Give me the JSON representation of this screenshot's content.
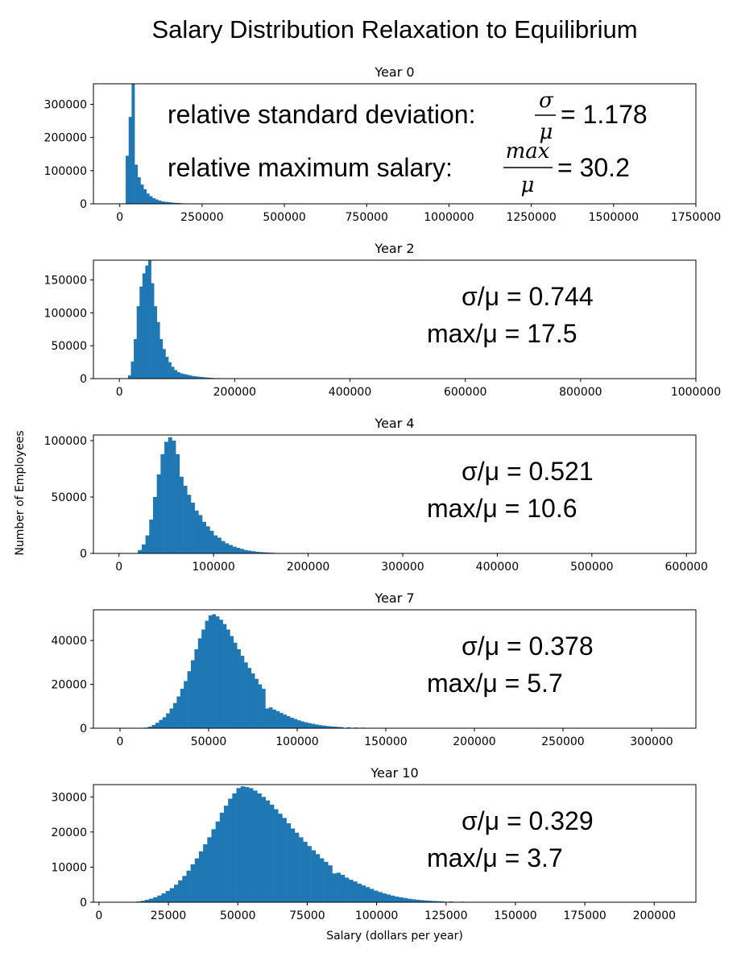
{
  "chart_data": {
    "title": "Salary Distribution Relaxation to Equilibrium",
    "ylabel": "Number of Employees",
    "xlabel": "Salary (dollars per year)",
    "colors": {
      "bars": "#1f77b4"
    },
    "panels": [
      {
        "type": "bar",
        "title": "Year 0",
        "xlim": [
          -80000,
          1750000
        ],
        "ylim": [
          0,
          362000
        ],
        "xticks": [
          0,
          250000,
          500000,
          750000,
          1000000,
          1250000,
          1500000,
          1750000
        ],
        "yticks": [
          0,
          100000,
          200000,
          300000
        ],
        "bin_width": 9000,
        "bins": [
          [
            18000,
            145000
          ],
          [
            27000,
            262000
          ],
          [
            36000,
            362000
          ],
          [
            45000,
            118000
          ],
          [
            54000,
            80000
          ],
          [
            63000,
            58000
          ],
          [
            72000,
            44000
          ],
          [
            81000,
            31000
          ],
          [
            90000,
            23000
          ],
          [
            99000,
            17000
          ],
          [
            108000,
            13000
          ],
          [
            117000,
            10000
          ],
          [
            126000,
            7000
          ],
          [
            135000,
            6000
          ],
          [
            144000,
            5000
          ],
          [
            153000,
            4000
          ],
          [
            162000,
            3000
          ],
          [
            171000,
            2500
          ],
          [
            180000,
            2000
          ],
          [
            189000,
            1500
          ],
          [
            198000,
            1200
          ],
          [
            207000,
            1000
          ],
          [
            216000,
            800
          ],
          [
            225000,
            600
          ],
          [
            234000,
            500
          ],
          [
            243000,
            400
          ]
        ],
        "annotations": {
          "sd_text": "relative standard deviation:",
          "sd_numerator": "σ",
          "sd_denominator": "μ",
          "sd_value": "= 1.178",
          "max_text": "relative maximum salary:",
          "max_numerator": "max",
          "max_denominator": "μ",
          "max_value": "= 30.2"
        }
      },
      {
        "type": "bar",
        "title": "Year 2",
        "xlim": [
          -45000,
          1000000
        ],
        "ylim": [
          0,
          180000
        ],
        "xticks": [
          0,
          200000,
          400000,
          600000,
          800000,
          1000000
        ],
        "yticks": [
          0,
          50000,
          100000,
          150000
        ],
        "bin_width": 5000,
        "bins": [
          [
            15000,
            5000
          ],
          [
            20000,
            26000
          ],
          [
            25000,
            60000
          ],
          [
            30000,
            110000
          ],
          [
            35000,
            140000
          ],
          [
            40000,
            160000
          ],
          [
            45000,
            172000
          ],
          [
            50000,
            181000
          ],
          [
            55000,
            145000
          ],
          [
            60000,
            110000
          ],
          [
            65000,
            86000
          ],
          [
            70000,
            60000
          ],
          [
            75000,
            45000
          ],
          [
            80000,
            33000
          ],
          [
            85000,
            25000
          ],
          [
            90000,
            18000
          ],
          [
            95000,
            13000
          ],
          [
            100000,
            10000
          ],
          [
            105000,
            8000
          ],
          [
            110000,
            7000
          ],
          [
            115000,
            6000
          ],
          [
            120000,
            5000
          ],
          [
            125000,
            4000
          ],
          [
            130000,
            3500
          ],
          [
            135000,
            3000
          ],
          [
            140000,
            2500
          ],
          [
            145000,
            2000
          ],
          [
            150000,
            1600
          ],
          [
            155000,
            1200
          ],
          [
            160000,
            1000
          ],
          [
            170000,
            800
          ],
          [
            180000,
            700
          ],
          [
            190000,
            600
          ],
          [
            200000,
            500
          ],
          [
            220000,
            400
          ],
          [
            240000,
            300
          ],
          [
            260000,
            250
          ],
          [
            280000,
            200
          ],
          [
            295000,
            150
          ]
        ],
        "annotations": {
          "sd_line": "σ/μ = 0.744",
          "max_line": "max/μ = 17.5"
        }
      },
      {
        "type": "bar",
        "title": "Year 4",
        "xlim": [
          -27000,
          610000
        ],
        "ylim": [
          0,
          105000
        ],
        "xticks": [
          0,
          100000,
          200000,
          300000,
          400000,
          500000,
          600000
        ],
        "yticks": [
          0,
          50000,
          100000
        ],
        "bin_width": 4000,
        "bins": [
          [
            20000,
            3000
          ],
          [
            24000,
            8000
          ],
          [
            28000,
            16000
          ],
          [
            32000,
            30000
          ],
          [
            36000,
            50000
          ],
          [
            40000,
            70000
          ],
          [
            44000,
            88000
          ],
          [
            48000,
            99000
          ],
          [
            52000,
            103000
          ],
          [
            56000,
            100000
          ],
          [
            60000,
            88000
          ],
          [
            64000,
            68000
          ],
          [
            68000,
            60000
          ],
          [
            72000,
            52000
          ],
          [
            76000,
            45000
          ],
          [
            80000,
            38000
          ],
          [
            84000,
            34000
          ],
          [
            88000,
            28000
          ],
          [
            92000,
            24000
          ],
          [
            96000,
            20000
          ],
          [
            100000,
            16000
          ],
          [
            104000,
            14000
          ],
          [
            108000,
            11000
          ],
          [
            112000,
            9000
          ],
          [
            116000,
            7500
          ],
          [
            120000,
            6000
          ],
          [
            124000,
            5000
          ],
          [
            128000,
            4000
          ],
          [
            132000,
            3000
          ],
          [
            136000,
            2500
          ],
          [
            140000,
            2000
          ],
          [
            144000,
            1500
          ],
          [
            148000,
            1200
          ],
          [
            152000,
            1000
          ],
          [
            156000,
            800
          ],
          [
            160000,
            600
          ],
          [
            164000,
            400
          ]
        ],
        "annotations": {
          "sd_line": "σ/μ = 0.521",
          "max_line": "max/μ = 10.6"
        }
      },
      {
        "type": "bar",
        "title": "Year 7",
        "xlim": [
          -15000,
          325000
        ],
        "ylim": [
          0,
          54000
        ],
        "xticks": [
          0,
          50000,
          100000,
          150000,
          200000,
          250000,
          300000
        ],
        "yticks": [
          0,
          20000,
          40000
        ],
        "bin_width": 2000,
        "bins": [
          [
            14000,
            300
          ],
          [
            16000,
            700
          ],
          [
            18000,
            1500
          ],
          [
            20000,
            2500
          ],
          [
            22000,
            3800
          ],
          [
            24000,
            5000
          ],
          [
            26000,
            6800
          ],
          [
            28000,
            9000
          ],
          [
            30000,
            11500
          ],
          [
            32000,
            14500
          ],
          [
            34000,
            18000
          ],
          [
            36000,
            21500
          ],
          [
            38000,
            26000
          ],
          [
            40000,
            31000
          ],
          [
            42000,
            36000
          ],
          [
            44000,
            41000
          ],
          [
            46000,
            45000
          ],
          [
            48000,
            49000
          ],
          [
            50000,
            51500
          ],
          [
            52000,
            52000
          ],
          [
            54000,
            51000
          ],
          [
            56000,
            49500
          ],
          [
            58000,
            47500
          ],
          [
            60000,
            45000
          ],
          [
            62000,
            42000
          ],
          [
            64000,
            39000
          ],
          [
            66000,
            36000
          ],
          [
            68000,
            33000
          ],
          [
            70000,
            30000
          ],
          [
            72000,
            27500
          ],
          [
            74000,
            25000
          ],
          [
            76000,
            22500
          ],
          [
            78000,
            20000
          ],
          [
            80000,
            18000
          ],
          [
            82000,
            9000
          ],
          [
            84000,
            9500
          ],
          [
            86000,
            8500
          ],
          [
            88000,
            7800
          ],
          [
            90000,
            7000
          ],
          [
            92000,
            6200
          ],
          [
            94000,
            5500
          ],
          [
            96000,
            4800
          ],
          [
            98000,
            4200
          ],
          [
            100000,
            3600
          ],
          [
            102000,
            3100
          ],
          [
            104000,
            2700
          ],
          [
            106000,
            2300
          ],
          [
            108000,
            2000
          ],
          [
            110000,
            1700
          ],
          [
            112000,
            1400
          ],
          [
            114000,
            1200
          ],
          [
            116000,
            1000
          ],
          [
            118000,
            850
          ],
          [
            120000,
            700
          ],
          [
            122000,
            600
          ],
          [
            124000,
            500
          ],
          [
            128000,
            400
          ],
          [
            132000,
            300
          ],
          [
            136000,
            250
          ],
          [
            140000,
            200
          ],
          [
            144000,
            150
          ],
          [
            148000,
            120
          ],
          [
            152000,
            80
          ]
        ],
        "annotations": {
          "sd_line": "σ/μ = 0.378",
          "max_line": "max/μ = 5.7"
        }
      },
      {
        "type": "bar",
        "title": "Year 10",
        "xlim": [
          -2000,
          215000
        ],
        "ylim": [
          0,
          33500
        ],
        "xticks": [
          0,
          25000,
          50000,
          75000,
          100000,
          125000,
          150000,
          175000,
          200000
        ],
        "yticks": [
          0,
          10000,
          20000,
          30000
        ],
        "bin_width": 1500,
        "bins": [
          [
            13500,
            200
          ],
          [
            15000,
            400
          ],
          [
            16500,
            700
          ],
          [
            18000,
            1000
          ],
          [
            19500,
            1400
          ],
          [
            21000,
            1900
          ],
          [
            22500,
            2500
          ],
          [
            24000,
            3200
          ],
          [
            25500,
            4000
          ],
          [
            27000,
            5000
          ],
          [
            28500,
            6200
          ],
          [
            30000,
            7500
          ],
          [
            31500,
            9000
          ],
          [
            33000,
            10800
          ],
          [
            34500,
            12500
          ],
          [
            36000,
            14500
          ],
          [
            37500,
            16500
          ],
          [
            39000,
            18500
          ],
          [
            40500,
            20800
          ],
          [
            42000,
            23000
          ],
          [
            43500,
            25500
          ],
          [
            45000,
            27500
          ],
          [
            46500,
            29500
          ],
          [
            48000,
            31000
          ],
          [
            49500,
            32500
          ],
          [
            51000,
            33000
          ],
          [
            52500,
            32800
          ],
          [
            54000,
            32500
          ],
          [
            55500,
            31800
          ],
          [
            57000,
            31000
          ],
          [
            58500,
            30000
          ],
          [
            60000,
            29000
          ],
          [
            61500,
            27800
          ],
          [
            63000,
            26500
          ],
          [
            64500,
            25200
          ],
          [
            66000,
            24000
          ],
          [
            67500,
            22500
          ],
          [
            69000,
            21000
          ],
          [
            70500,
            19800
          ],
          [
            72000,
            18500
          ],
          [
            73500,
            17200
          ],
          [
            75000,
            16000
          ],
          [
            76500,
            14800
          ],
          [
            78000,
            13700
          ],
          [
            79500,
            12500
          ],
          [
            81000,
            11500
          ],
          [
            82500,
            10500
          ],
          [
            84000,
            8200
          ],
          [
            85500,
            8400
          ],
          [
            87000,
            7800
          ],
          [
            88500,
            7000
          ],
          [
            90000,
            6400
          ],
          [
            91500,
            5900
          ],
          [
            93000,
            5300
          ],
          [
            94500,
            4800
          ],
          [
            96000,
            4300
          ],
          [
            97500,
            3800
          ],
          [
            99000,
            3300
          ],
          [
            100500,
            2900
          ],
          [
            102000,
            2500
          ],
          [
            103500,
            2200
          ],
          [
            105000,
            1900
          ],
          [
            106500,
            1600
          ],
          [
            108000,
            1400
          ],
          [
            109500,
            1200
          ],
          [
            111000,
            1000
          ],
          [
            112500,
            850
          ],
          [
            114000,
            700
          ],
          [
            115500,
            600
          ],
          [
            117000,
            500
          ],
          [
            118500,
            420
          ],
          [
            120000,
            350
          ],
          [
            121500,
            300
          ],
          [
            123000,
            250
          ],
          [
            126000,
            200
          ],
          [
            130000,
            150
          ],
          [
            135000,
            120
          ],
          [
            140000,
            100
          ],
          [
            145000,
            80
          ],
          [
            150000,
            60
          ],
          [
            155000,
            50
          ]
        ],
        "annotations": {
          "sd_line": "σ/μ = 0.329",
          "max_line": "max/μ = 3.7"
        }
      }
    ]
  }
}
